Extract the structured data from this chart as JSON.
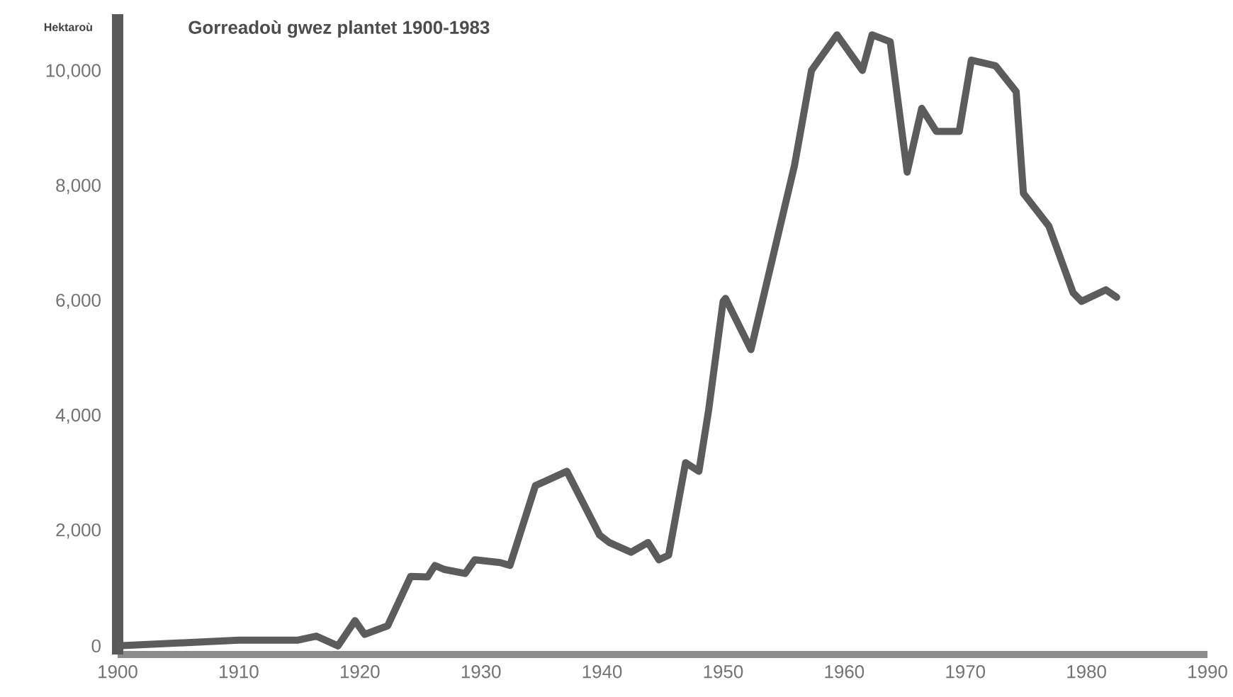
{
  "chart_data": {
    "type": "line",
    "title": "Gorreadoù gwez plantet 1900-1983",
    "ylabel": "Hektaroù",
    "x": [
      1900,
      1905,
      1910,
      1914.9,
      1916.4,
      1918.2,
      1919.6,
      1920.4,
      1922.3,
      1924.2,
      1925.6,
      1926.2,
      1927,
      1928.7,
      1929.5,
      1931.6,
      1932.4,
      1934.5,
      1937.1,
      1939.8,
      1940.6,
      1942.4,
      1943.8,
      1944.7,
      1945.5,
      1946.9,
      1948,
      1948.8,
      1950,
      1950.2,
      1952.3,
      1955.9,
      1957.3,
      1959.4,
      1961.5,
      1962.3,
      1963.8,
      1965.2,
      1966.4,
      1967.6,
      1969.5,
      1970.5,
      1972.5,
      1974.2,
      1974.8,
      1976.9,
      1978.9,
      1979.6,
      1981.6,
      1982.5
    ],
    "series": [
      {
        "color": "#5c5c5c",
        "values": [
          0,
          50,
          100,
          100,
          170,
          0,
          440,
          200,
          350,
          1210,
          1200,
          1400,
          1330,
          1260,
          1500,
          1450,
          1400,
          2790,
          3040,
          1930,
          1800,
          1630,
          1800,
          1500,
          1580,
          3190,
          3040,
          4100,
          6000,
          6050,
          5160,
          8370,
          10020,
          10640,
          10020,
          10640,
          10520,
          8250,
          9360,
          8960,
          8960,
          10200,
          10100,
          9650,
          7880,
          7310,
          6150,
          6000,
          6200,
          6070
        ]
      }
    ],
    "xlim": [
      1900,
      1990
    ],
    "ylim": [
      -150,
      11000
    ],
    "xticks": [
      1900,
      1910,
      1920,
      1930,
      1940,
      1950,
      1960,
      1970,
      1980,
      1990
    ],
    "yticks": [
      {
        "value": 0,
        "label": "0"
      },
      {
        "value": 2000,
        "label": "2,000"
      },
      {
        "value": 4000,
        "label": "4,000"
      },
      {
        "value": 6000,
        "label": "6,000"
      },
      {
        "value": 8000,
        "label": "8,000"
      },
      {
        "value": 10000,
        "label": "10,000"
      }
    ]
  }
}
